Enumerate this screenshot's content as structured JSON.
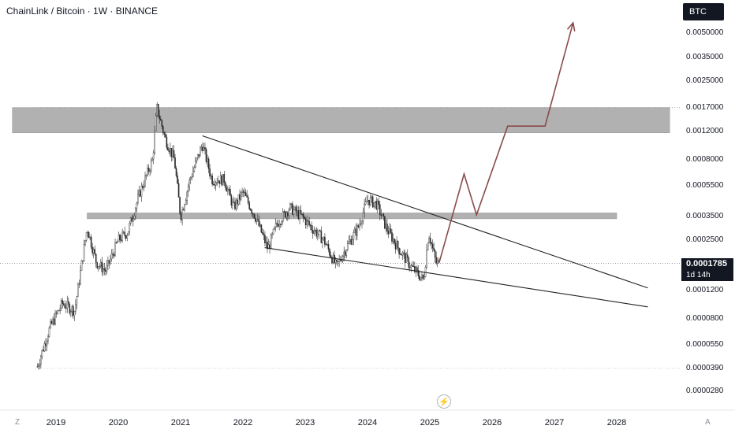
{
  "header": {
    "title": "ChainLink / Bitcoin · 1W · BINANCE",
    "currency": "BTC"
  },
  "price_tag": {
    "price": "0.0001785",
    "countdown": "1d 14h"
  },
  "corners": {
    "left": "Z",
    "right": "A"
  },
  "flash_icon": "lightning-icon",
  "colors": {
    "candle": "#2b2b2b",
    "zone": "#a3a3a3",
    "trendline": "#222222",
    "projection": "#8a4a4a"
  },
  "chart_data": {
    "type": "candlestick",
    "title": "ChainLink / Bitcoin · 1W · BINANCE",
    "scale": "log",
    "y_ticks": [
      "0.0050000",
      "0.0035000",
      "0.0025000",
      "0.0017000",
      "0.0012000",
      "0.0008000",
      "0.0005500",
      "0.0003500",
      "0.0002500",
      "0.0001200",
      "0.0000800",
      "0.0000550",
      "0.0000390",
      "0.0000280"
    ],
    "x_ticks": [
      "2019",
      "2020",
      "2021",
      "2022",
      "2023",
      "2024",
      "2025",
      "2026",
      "2027",
      "2028"
    ],
    "ylim": [
      2.5e-05,
      0.0065
    ],
    "price_anchors": [
      [
        2018.7,
        4e-05
      ],
      [
        2018.9,
        7e-05
      ],
      [
        2019.1,
        0.0001
      ],
      [
        2019.3,
        9e-05
      ],
      [
        2019.5,
        0.0003
      ],
      [
        2019.65,
        0.00018
      ],
      [
        2019.8,
        0.00016
      ],
      [
        2020.0,
        0.00025
      ],
      [
        2020.15,
        0.00028
      ],
      [
        2020.35,
        0.0005
      ],
      [
        2020.55,
        0.0008
      ],
      [
        2020.62,
        0.0017
      ],
      [
        2020.75,
        0.0011
      ],
      [
        2020.9,
        0.0008
      ],
      [
        2021.0,
        0.00035
      ],
      [
        2021.15,
        0.0006
      ],
      [
        2021.35,
        0.001
      ],
      [
        2021.5,
        0.0006
      ],
      [
        2021.7,
        0.0006
      ],
      [
        2021.85,
        0.0004
      ],
      [
        2022.0,
        0.0005
      ],
      [
        2022.2,
        0.00035
      ],
      [
        2022.4,
        0.00022
      ],
      [
        2022.55,
        0.00032
      ],
      [
        2022.75,
        0.0004
      ],
      [
        2022.95,
        0.00035
      ],
      [
        2023.1,
        0.0003
      ],
      [
        2023.3,
        0.00025
      ],
      [
        2023.5,
        0.00017
      ],
      [
        2023.7,
        0.00024
      ],
      [
        2023.85,
        0.0003
      ],
      [
        2024.0,
        0.00045
      ],
      [
        2024.15,
        0.00042
      ],
      [
        2024.3,
        0.0003
      ],
      [
        2024.5,
        0.00022
      ],
      [
        2024.7,
        0.00017
      ],
      [
        2024.9,
        0.00014
      ],
      [
        2024.98,
        0.00028
      ],
      [
        2025.1,
        0.00018
      ],
      [
        2025.15,
        0.000178
      ]
    ],
    "zones": [
      {
        "x": [
          2018.3,
          2028.85
        ],
        "y": [
          0.00118,
          0.0017
        ]
      },
      {
        "x": [
          2019.5,
          2028.0
        ],
        "y": [
          0.00034,
          0.00037
        ]
      }
    ],
    "trendlines": [
      {
        "from": [
          2021.35,
          0.00113
        ],
        "to": [
          2028.5,
          0.000125
        ]
      },
      {
        "from": [
          2022.35,
          0.000224
        ],
        "to": [
          2028.5,
          9.5e-05
        ]
      }
    ],
    "projection": [
      [
        2025.15,
        0.00018
      ],
      [
        2025.55,
        0.00065
      ],
      [
        2025.75,
        0.00036
      ],
      [
        2026.25,
        0.0013
      ],
      [
        2026.85,
        0.0013
      ],
      [
        2027.3,
        0.0058
      ]
    ],
    "last_price": 0.0001785,
    "grid": false
  }
}
